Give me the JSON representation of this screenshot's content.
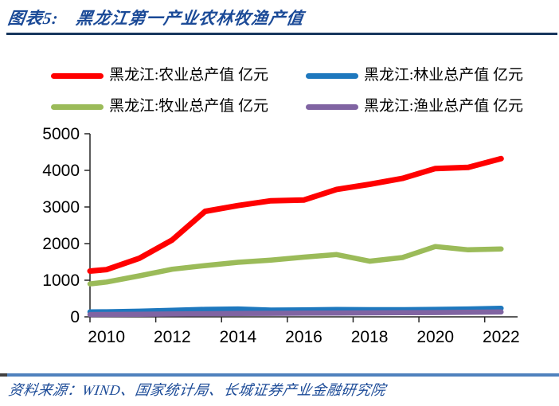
{
  "header": {
    "title": "图表5:　黑龙江第一产业农林牧渔产值"
  },
  "footer": {
    "source": "资料来源：WIND、国家统计局、长城证券产业金融研究院"
  },
  "colors": {
    "title_text": "#1B4A97",
    "title_rule": "#17365D",
    "footer_text": "#1B4A97",
    "footer_rule_blue": "#4F81BD",
    "footer_rule_dark": "#404040",
    "axis": "#262626",
    "tick_label": "#000000",
    "agriculture": "#FF0000",
    "forestry": "#1E78BE",
    "husbandry": "#9BBB59",
    "fishery": "#8064A2"
  },
  "chart_data": {
    "type": "line",
    "title": "",
    "xlabel": "",
    "ylabel": "",
    "unit": "亿元",
    "ylim": [
      0,
      5000
    ],
    "yticks": [
      0,
      1000,
      2000,
      3000,
      4000,
      5000
    ],
    "xticklabels": [
      "2010",
      "2012",
      "2014",
      "2016",
      "2018",
      "2020",
      "2022"
    ],
    "grid": false,
    "legend_position": "top",
    "x": [
      2009,
      2010,
      2011,
      2012,
      2013,
      2014,
      2015,
      2016,
      2017,
      2018,
      2019,
      2020,
      2021,
      2022
    ],
    "series": [
      {
        "name": "黑龙江:农业总产值 亿元",
        "key": "agriculture",
        "color": "#FF0000",
        "values": [
          1250,
          1290,
          1600,
          2100,
          2880,
          3040,
          3170,
          3190,
          3480,
          3620,
          3780,
          4050,
          4080,
          4320
        ]
      },
      {
        "name": "黑龙江:林业总产值 亿元",
        "key": "forestry",
        "color": "#1E78BE",
        "values": [
          135,
          140,
          155,
          180,
          205,
          215,
          185,
          190,
          200,
          195,
          195,
          205,
          215,
          235
        ]
      },
      {
        "name": "黑龙江:牧业总产值 亿元",
        "key": "husbandry",
        "color": "#9BBB59",
        "values": [
          900,
          950,
          1120,
          1300,
          1400,
          1490,
          1550,
          1630,
          1700,
          1520,
          1620,
          1920,
          1830,
          1855
        ]
      },
      {
        "name": "黑龙江:渔业总产值 亿元",
        "key": "fishery",
        "color": "#8064A2",
        "values": [
          62,
          65,
          70,
          78,
          85,
          92,
          96,
          100,
          105,
          108,
          112,
          118,
          125,
          132
        ]
      }
    ]
  }
}
